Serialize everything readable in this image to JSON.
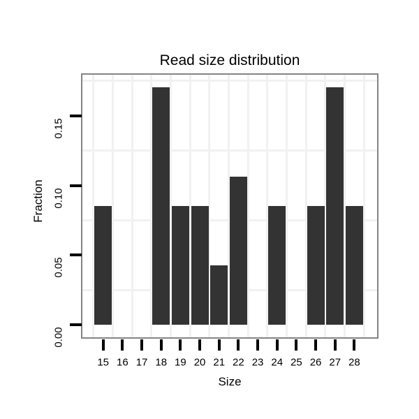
{
  "chart_data": {
    "type": "bar",
    "title": "Read size distribution",
    "xlabel": "Size",
    "ylabel": "Fraction",
    "categories": [
      "15",
      "16",
      "17",
      "18",
      "19",
      "20",
      "21",
      "22",
      "23",
      "24",
      "25",
      "26",
      "27",
      "28"
    ],
    "values": [
      0.0851,
      0,
      0,
      0.1702,
      0.0851,
      0.0851,
      0.0426,
      0.1064,
      0,
      0.0851,
      0,
      0.0851,
      0.1702,
      0.0851
    ],
    "y_tick_values": [
      0,
      0.05,
      0.1,
      0.15
    ],
    "y_tick_labels": [
      "0.00",
      "0.05",
      "0.10",
      "0.15"
    ],
    "y_minor_gridlines": [
      0.025,
      0.075,
      0.125,
      0.175
    ],
    "ylim": [
      -0.0088,
      0.1793
    ],
    "grid": "minor-horizontal-and-category-boundaries",
    "legend": "none",
    "colors": {
      "bar": "#333333",
      "panel_border": "#848484",
      "gridline": "#f1f1f1",
      "tick": "#000000",
      "text": "#000000",
      "background": "#ffffff"
    }
  }
}
